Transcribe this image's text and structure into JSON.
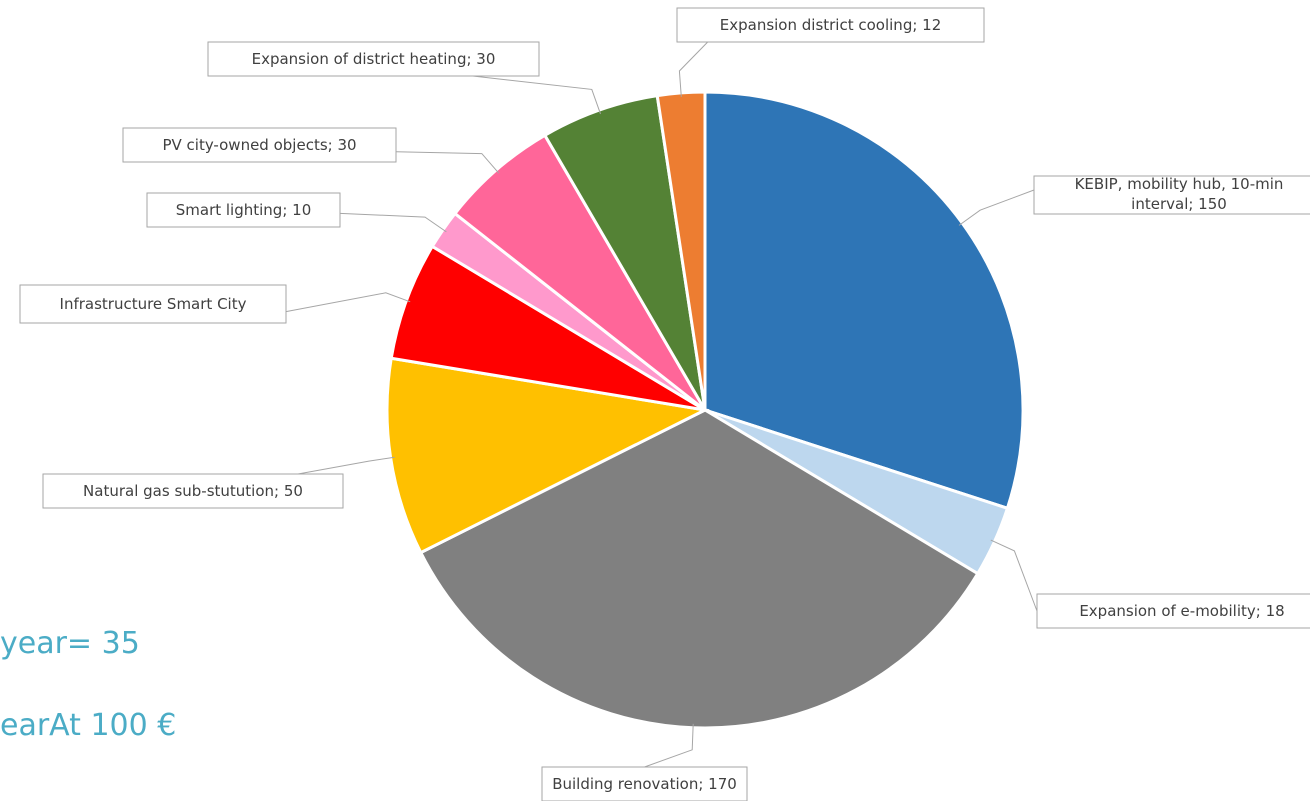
{
  "side_text": {
    "line1": "year= 35",
    "line2": "earAt 100 €"
  },
  "chart_data": {
    "type": "pie",
    "start_angle_deg": 0,
    "direction": "clockwise",
    "slices": [
      {
        "label": "KEBIP, mobility hub, 10-min interval; 150",
        "lines": [
          "KEBIP, mobility hub, 10-min",
          "interval; 150"
        ],
        "value": 150,
        "color": "#2e75b6"
      },
      {
        "label": "Expansion of e-mobility; 18",
        "lines": [
          "Expansion of e-mobility; 18"
        ],
        "value": 18,
        "color": "#bdd7ee"
      },
      {
        "label": "Building renovation; 170",
        "lines": [
          "Building renovation; 170"
        ],
        "value": 170,
        "color": "#808080"
      },
      {
        "label": "Natural gas sub-stutution; 50",
        "lines": [
          "Natural gas sub-stutution; 50"
        ],
        "value": 50,
        "color": "#ffc000"
      },
      {
        "label": "Infrastructure Smart City",
        "lines": [
          "Infrastructure Smart City"
        ],
        "value": 30,
        "color": "#ff0000"
      },
      {
        "label": "Smart lighting; 10",
        "lines": [
          "Smart lighting; 10"
        ],
        "value": 10,
        "color": "#ff99cc"
      },
      {
        "label": "PV city-owned objects; 30",
        "lines": [
          "PV city-owned objects; 30"
        ],
        "value": 30,
        "color": "#ff6699"
      },
      {
        "label": "Expansion of district heating; 30",
        "lines": [
          "Expansion of district heating; 30"
        ],
        "value": 30,
        "color": "#548235"
      },
      {
        "label": "Expansion district cooling; 12",
        "lines": [
          "Expansion district cooling; 12"
        ],
        "value": 12,
        "color": "#ed7d31"
      }
    ]
  }
}
